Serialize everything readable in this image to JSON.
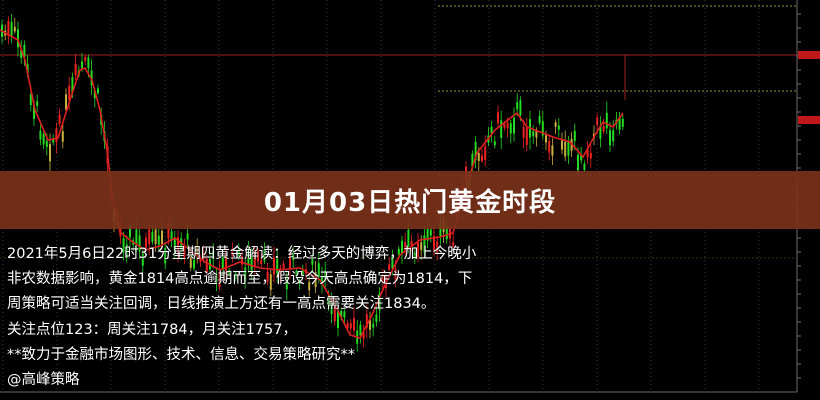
{
  "banner": {
    "title": "01月03日热门黄金时段"
  },
  "article": {
    "lines": [
      "2021年5月6日22时31分星期四黄金解读：经过多天的博弈，加上今晚小",
      "非农数据影响，黄金1814高点逾期而至，假设今天高点确定为1814，下",
      "周策略可适当关注回调，日线推演上方还有一高点需要关注1834。",
      "关注点位123：周关注1784，月关注1757，",
      "**致力于金融市场图形、技术、信息、交易策略研究**",
      "@高峰策略"
    ]
  },
  "chart_style": {
    "background": "#000000",
    "bull_color": "#22dd22",
    "bear_color": "#ee2222",
    "doji_color": "#c8b040",
    "moving_average_color": "#e02020",
    "level_line_color": "#c8c840",
    "resistance_line_color": "#a02020",
    "banner_color": "#7a321a"
  }
}
